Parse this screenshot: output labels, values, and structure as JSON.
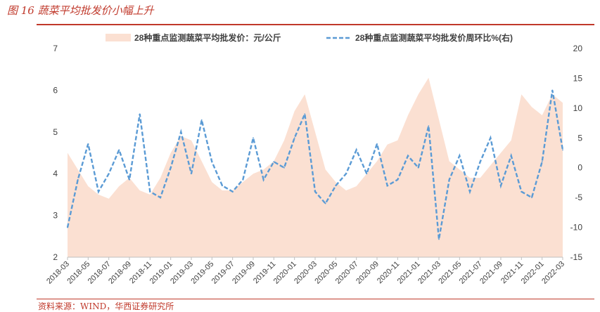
{
  "header": {
    "title": "图 16    蔬菜平均批发价小幅上升"
  },
  "footer": {
    "source": "资料来源：WIND，华西证券研究所"
  },
  "chart_data": {
    "type": "area",
    "legend_position": "top",
    "grid": false,
    "x_ticks": [
      "2018-03",
      "2018-05",
      "2018-07",
      "2018-09",
      "2018-11",
      "2019-01",
      "2019-03",
      "2019-05",
      "2019-07",
      "2019-09",
      "2019-11",
      "2020-01",
      "2020-03",
      "2020-05",
      "2020-07",
      "2020-09",
      "2020-11",
      "2021-01",
      "2021-03",
      "2021-05",
      "2021-07",
      "2021-09",
      "2021-11",
      "2022-01",
      "2022-03"
    ],
    "y_left": {
      "min": 2,
      "max": 7,
      "ticks": [
        "2",
        "3",
        "4",
        "5",
        "6",
        "7"
      ]
    },
    "y_right": {
      "min": -15,
      "max": 20,
      "ticks": [
        "-15",
        "-10",
        "-5",
        "0",
        "5",
        "10",
        "15",
        "20"
      ]
    },
    "series": [
      {
        "name": "28种重点监测蔬菜平均批发价：元/公斤",
        "type": "area",
        "axis": "left",
        "color": "#fbe0d2",
        "x": [
          "2018-03",
          "2018-04",
          "2018-05",
          "2018-06",
          "2018-07",
          "2018-08",
          "2018-09",
          "2018-10",
          "2018-11",
          "2018-12",
          "2019-01",
          "2019-02",
          "2019-03",
          "2019-04",
          "2019-05",
          "2019-06",
          "2019-07",
          "2019-08",
          "2019-09",
          "2019-10",
          "2019-11",
          "2019-12",
          "2020-01",
          "2020-02",
          "2020-03",
          "2020-04",
          "2020-05",
          "2020-06",
          "2020-07",
          "2020-08",
          "2020-09",
          "2020-10",
          "2020-11",
          "2020-12",
          "2021-01",
          "2021-02",
          "2021-03",
          "2021-04",
          "2021-05",
          "2021-06",
          "2021-07",
          "2021-08",
          "2021-09",
          "2021-10",
          "2021-11",
          "2021-12",
          "2022-01",
          "2022-02",
          "2022-03"
        ],
        "values": [
          4.5,
          4.1,
          3.7,
          3.5,
          3.4,
          3.7,
          3.9,
          3.6,
          3.5,
          3.9,
          4.5,
          4.9,
          4.8,
          4.3,
          3.8,
          3.6,
          3.6,
          3.8,
          4.0,
          4.1,
          4.3,
          4.8,
          5.5,
          5.9,
          5.0,
          4.1,
          3.8,
          3.6,
          3.7,
          4.0,
          4.3,
          4.7,
          4.8,
          5.4,
          5.9,
          6.3,
          5.3,
          4.3,
          4.1,
          3.9,
          3.9,
          4.2,
          4.5,
          4.8,
          5.9,
          5.6,
          5.4,
          5.9,
          5.7
        ]
      },
      {
        "name": "28种重点监测蔬菜平均批发价周环比%(右)",
        "type": "line",
        "axis": "right",
        "style": "dashed",
        "color": "#5b9bd5",
        "x": [
          "2018-03",
          "2018-04",
          "2018-05",
          "2018-06",
          "2018-07",
          "2018-08",
          "2018-09",
          "2018-10",
          "2018-11",
          "2018-12",
          "2019-01",
          "2019-02",
          "2019-03",
          "2019-04",
          "2019-05",
          "2019-06",
          "2019-07",
          "2019-08",
          "2019-09",
          "2019-10",
          "2019-11",
          "2019-12",
          "2020-01",
          "2020-02",
          "2020-03",
          "2020-04",
          "2020-05",
          "2020-06",
          "2020-07",
          "2020-08",
          "2020-09",
          "2020-10",
          "2020-11",
          "2020-12",
          "2021-01",
          "2021-02",
          "2021-03",
          "2021-04",
          "2021-05",
          "2021-06",
          "2021-07",
          "2021-08",
          "2021-09",
          "2021-10",
          "2021-11",
          "2021-12",
          "2022-01",
          "2022-02",
          "2022-03"
        ],
        "values": [
          -10,
          -2,
          4,
          -4,
          -1,
          3,
          -2,
          9,
          -4,
          -5,
          0,
          6,
          -1,
          8,
          1,
          -3,
          -4,
          -2,
          5,
          -2,
          1,
          0,
          5,
          9,
          -4,
          -6,
          -3,
          -1,
          3,
          -1,
          4,
          -3,
          -2,
          2,
          0,
          7,
          -12,
          -2,
          2,
          -4,
          1,
          5,
          -3,
          2,
          -4,
          -5,
          1,
          13,
          3
        ]
      }
    ]
  }
}
